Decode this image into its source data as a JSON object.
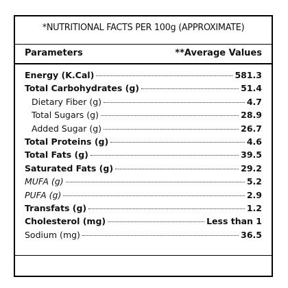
{
  "header": {
    "title": "*NUTRITIONAL FACTS PER 100g (APPROXIMATE)"
  },
  "table": {
    "columns": [
      "Parameters",
      "**Average Values"
    ],
    "rows": [
      [
        "Energy (K.Cal)",
        "581.3"
      ],
      [
        "Total Carbohydrates (g)",
        "51.4"
      ],
      [
        "Dietary Fiber (g)",
        "4.7"
      ],
      [
        "Total Sugars (g)",
        "28.9"
      ],
      [
        "Added Sugar (g)",
        "26.7"
      ],
      [
        "Total Proteins (g)",
        "4.6"
      ],
      [
        "Total Fats (g)",
        "39.5"
      ],
      [
        "Saturated Fats (g)",
        "29.2"
      ],
      [
        "MUFA (g)",
        "5.2"
      ],
      [
        "PUFA (g)",
        "2.9"
      ],
      [
        "Transfats (g)",
        "1.2"
      ],
      [
        "Cholesterol (mg)",
        "Less than 1"
      ],
      [
        "Sodium (mg)",
        "36.5"
      ]
    ]
  }
}
